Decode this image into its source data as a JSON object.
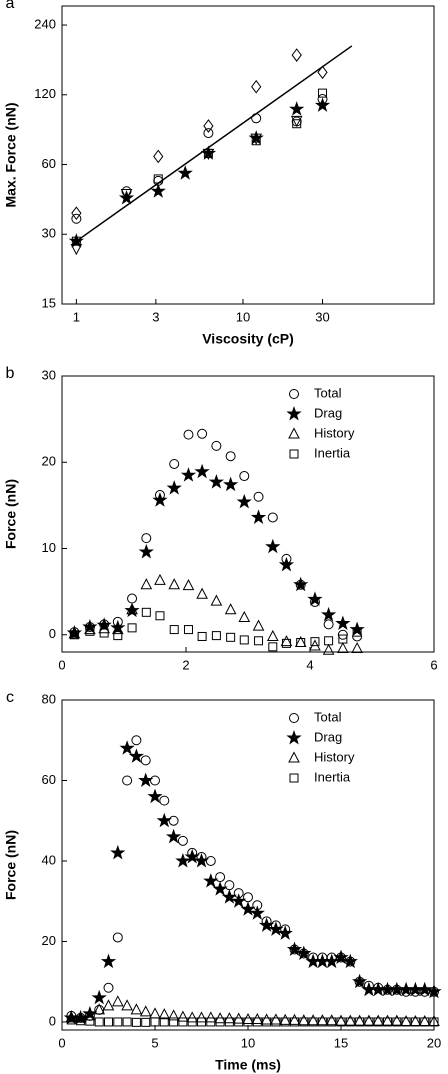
{
  "chart_data": [
    {
      "type": "scatter",
      "panel_label": "a",
      "xlabel": "Viscosity (cP)",
      "ylabel": "Max. Force (nN)",
      "xlog": true,
      "ylog": true,
      "xlim": [
        0.82,
        140
      ],
      "ylim": [
        15,
        290
      ],
      "xticks": [
        1,
        3,
        10,
        30
      ],
      "yticks": [
        15,
        30,
        60,
        120,
        240
      ],
      "x": [
        1,
        2,
        3.1,
        4.5,
        6.2,
        12,
        21,
        30
      ],
      "series": [
        {
          "marker": "circle",
          "color": "#000000",
          "values": [
            35,
            46,
            51,
            null,
            82,
            95,
            92,
            115
          ]
        },
        {
          "marker": "star",
          "color": "#000000",
          "values": [
            28,
            43,
            46,
            55,
            67,
            78,
            104,
            108
          ]
        },
        {
          "marker": "diamond",
          "color": "#000000",
          "values": [
            37,
            null,
            65,
            null,
            88,
            130,
            178,
            150
          ]
        },
        {
          "marker": "triangle-down",
          "color": "#000000",
          "values": [
            26,
            45,
            null,
            null,
            67,
            78,
            93,
            null
          ]
        },
        {
          "marker": "square",
          "color": "#000000",
          "values": [
            28,
            null,
            52,
            null,
            67,
            76,
            90,
            122
          ]
        },
        {
          "marker": "none",
          "line": true,
          "color": "#000000",
          "x": [
            1,
            45
          ],
          "values": [
            28,
            195
          ]
        }
      ]
    },
    {
      "type": "scatter",
      "panel_label": "b",
      "ylabel": "Force (nN)",
      "xlim": [
        0,
        6
      ],
      "ylim": [
        -2,
        30
      ],
      "xticks": [
        0,
        2,
        4,
        6
      ],
      "yticks": [
        0,
        10,
        20,
        30
      ],
      "legend": "upper right",
      "x": [
        0.2,
        0.45,
        0.68,
        0.9,
        1.13,
        1.36,
        1.58,
        1.81,
        2.04,
        2.26,
        2.49,
        2.72,
        2.94,
        3.17,
        3.4,
        3.62,
        3.85,
        4.08,
        4.3,
        4.53,
        4.76
      ],
      "series": [
        {
          "name": "Total",
          "marker": "circle",
          "color": "#000000",
          "values": [
            0.3,
            0.9,
            1.2,
            1.5,
            4.2,
            11.2,
            16.2,
            19.8,
            23.2,
            23.3,
            21.9,
            20.7,
            18.4,
            16,
            13.6,
            8.8,
            5.8,
            3.8,
            1.2,
            0,
            -0.2
          ]
        },
        {
          "name": "Drag",
          "marker": "star",
          "color": "#000000",
          "values": [
            0.2,
            0.9,
            1.1,
            0.8,
            2.8,
            9.6,
            15.6,
            17,
            18.5,
            18.9,
            17.7,
            17.4,
            15.4,
            13.6,
            10.2,
            8.1,
            5.8,
            4.1,
            2.3,
            1.3,
            0.6
          ]
        },
        {
          "name": "History",
          "marker": "triangle",
          "color": "#000000",
          "values": [
            0.1,
            0.6,
            0.7,
            0.6,
            2.9,
            5.8,
            6.3,
            5.8,
            5.7,
            4.7,
            3.9,
            2.9,
            2.0,
            1.0,
            -0.2,
            -0.8,
            -0.9,
            -1.3,
            -1.8,
            -1.6,
            -1.6
          ]
        },
        {
          "name": "Inertia",
          "marker": "square",
          "color": "#000000",
          "values": [
            0,
            0.4,
            0.2,
            -0.1,
            0.8,
            2.6,
            2.2,
            0.6,
            0.6,
            -0.2,
            -0.1,
            -0.3,
            -0.6,
            -0.7,
            -1.4,
            -1.0,
            -0.9,
            -0.8,
            -0.7,
            -0.5,
            0.3
          ]
        }
      ]
    },
    {
      "type": "scatter",
      "panel_label": "c",
      "xlabel": "Time (ms)",
      "ylabel": "Force (nN)",
      "xlim": [
        0,
        20
      ],
      "ylim": [
        -2,
        80
      ],
      "xticks": [
        0,
        5,
        10,
        15,
        20
      ],
      "yticks": [
        0,
        20,
        40,
        60,
        80
      ],
      "legend": "upper right",
      "x": [
        0.5,
        1,
        1.5,
        2,
        2.5,
        3,
        3.5,
        4,
        4.5,
        5,
        5.5,
        6,
        6.5,
        7,
        7.5,
        8,
        8.5,
        9,
        9.5,
        10,
        10.5,
        11,
        11.5,
        12,
        12.5,
        13,
        13.5,
        14,
        14.5,
        15,
        15.5,
        16,
        16.5,
        17,
        17.5,
        18,
        18.5,
        19,
        19.5,
        20
      ],
      "series": [
        {
          "name": "Total",
          "marker": "circle",
          "color": "#000000",
          "values": [
            1.5,
            1,
            1.5,
            3,
            8.5,
            21,
            60,
            70,
            65,
            60,
            55,
            50,
            45,
            42,
            41,
            40,
            36,
            34,
            32,
            31,
            29,
            25,
            24,
            23,
            18,
            17,
            16,
            16,
            16,
            16,
            15,
            10,
            9,
            8.5,
            8,
            8,
            7.5,
            7.5,
            7.5,
            7.5
          ]
        },
        {
          "name": "Drag",
          "marker": "star",
          "color": "#000000",
          "values": [
            1,
            1,
            2,
            6,
            15,
            42,
            68,
            66,
            60,
            56,
            50,
            46,
            40,
            41,
            40,
            35,
            33,
            31,
            30,
            28,
            27,
            24,
            23,
            22,
            18,
            17,
            15,
            15,
            15,
            16,
            15,
            10,
            8,
            8,
            8,
            8,
            8,
            8,
            8,
            7.5
          ]
        },
        {
          "name": "History",
          "marker": "triangle",
          "color": "#000000",
          "values": [
            1,
            1,
            1.5,
            3,
            4,
            5,
            4,
            3,
            2.5,
            2,
            1.8,
            1.5,
            1.2,
            1,
            1,
            1,
            0.8,
            0.8,
            0.7,
            0.6,
            0.6,
            0.5,
            0.5,
            0.4,
            0.4,
            0.3,
            0.3,
            0.3,
            0.3,
            0.2,
            0.2,
            0.2,
            0.2,
            0.2,
            0.2,
            0.2,
            0.1,
            0.1,
            0.1,
            0.1
          ]
        },
        {
          "name": "Inertia",
          "marker": "square",
          "color": "#000000",
          "values": [
            0.5,
            0.3,
            0.2,
            0,
            0,
            0,
            0,
            -0.1,
            -0.1,
            0,
            0,
            0,
            0,
            0,
            0,
            0,
            0,
            0,
            0,
            0,
            0,
            0,
            0,
            0,
            0,
            0,
            0,
            0,
            0,
            0,
            0,
            0,
            0,
            0,
            0,
            0,
            0,
            0,
            0,
            0
          ]
        }
      ]
    }
  ]
}
